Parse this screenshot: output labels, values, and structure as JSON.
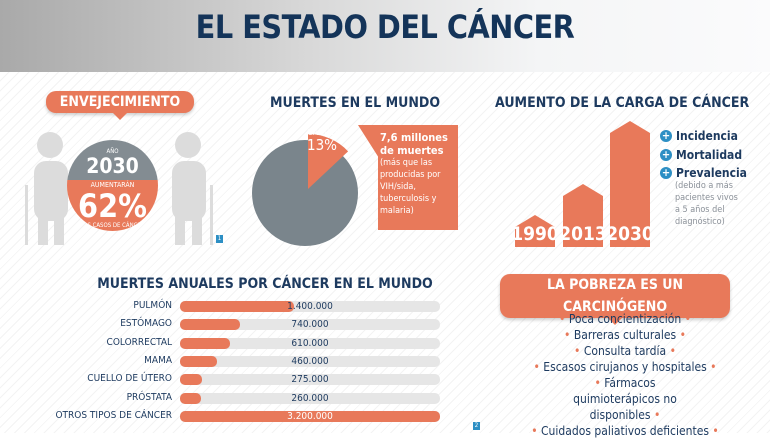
{
  "title": "EL ESTADO DEL CÁNCER",
  "aging": {
    "heading": "ENVEJECIMIENTO",
    "year_label": "AÑO",
    "year": "2030",
    "increase_label": "AUMENTARÁN",
    "percent": "62%",
    "caption": "LOS CASOS DE CÁNCER",
    "footnote": "1"
  },
  "deaths_world": {
    "heading": "MUERTES EN EL MUNDO",
    "slice_label": "CÁNCER",
    "slice_percent": "13%",
    "slice_value": 13,
    "callout_bold": "7,6 millones de muertes",
    "callout_text": "(más que las producidas por VIH/sida, tuberculosis y malaria)"
  },
  "burden": {
    "heading": "AUMENTO DE LA CARGA DE CÁNCER",
    "years": [
      "1990",
      "2013",
      "2030"
    ],
    "legend": [
      "Incidencia",
      "Mortalidad",
      "Prevalencia"
    ],
    "note": "(debido a más pacientes vivos a 5 años del diagnóstico)"
  },
  "chart_data": {
    "type": "bar",
    "orientation": "horizontal",
    "title": "MUERTES ANUALES POR CÁNCER EN EL MUNDO",
    "categories": [
      "PULMÓN",
      "ESTÓMAGO",
      "COLORRECTAL",
      "MAMA",
      "CUELLO DE ÚTERO",
      "PRÓSTATA",
      "OTROS TIPOS DE CÁNCER"
    ],
    "values": [
      1400000,
      740000,
      610000,
      460000,
      275000,
      260000,
      3200000
    ],
    "labels": [
      "1.400.000",
      "740.000",
      "610.000",
      "460.000",
      "275.000",
      "260.000",
      "3.200.000"
    ],
    "xlim": [
      0,
      3200000
    ],
    "footnote": "2",
    "color": "#e8795a"
  },
  "poverty": {
    "heading": "LA POBREZA ES UN CARCINÓGENO",
    "items": [
      "Poca concientización",
      "Barreras culturales",
      "Consulta tardía",
      "Escasos cirujanos y hospitales",
      "Fármacos quimioterápicos no disponibles",
      "Cuidados paliativos deficientes"
    ]
  },
  "colors": {
    "accent": "#e8795a",
    "navy": "#1d3a5f",
    "gray": "#7a858c",
    "plus": "#2d8fc4"
  }
}
